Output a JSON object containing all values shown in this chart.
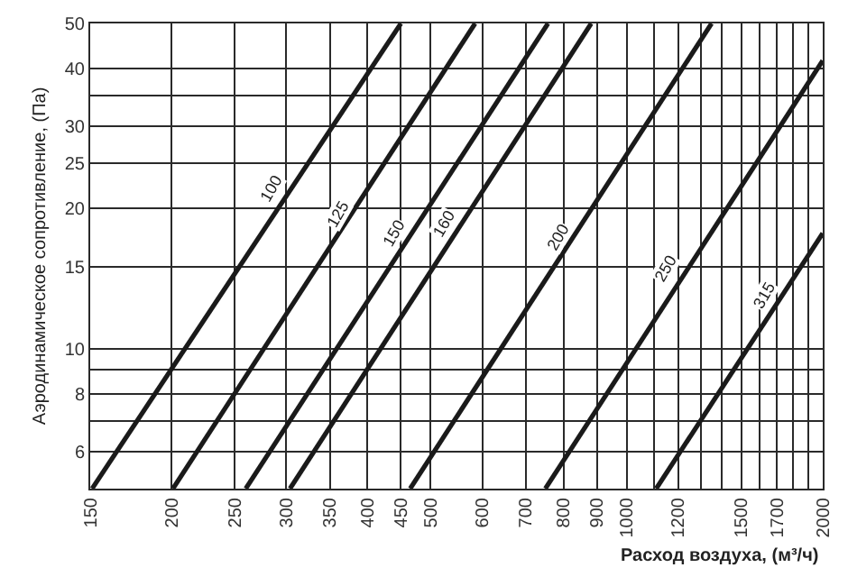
{
  "chart_data": {
    "type": "line",
    "xlabel": "Расход воздуха, (м³/ч)",
    "ylabel": "Аэродинамическое сопротивление, (Па)",
    "log": "xy",
    "grid": true,
    "marker": "none",
    "line_style": "solid",
    "xlim": [
      150,
      2000
    ],
    "ylim": [
      5,
      50
    ],
    "xticks": [
      150,
      200,
      250,
      300,
      350,
      400,
      450,
      500,
      600,
      700,
      800,
      900,
      1000,
      {
        "value": 1100,
        "label": null
      },
      1200,
      {
        "value": 1300,
        "label": null
      },
      {
        "value": 1400,
        "label": null
      },
      1500,
      {
        "value": 1600,
        "label": null
      },
      1700,
      {
        "value": 1800,
        "label": null
      },
      {
        "value": 1900,
        "label": null
      },
      2000
    ],
    "yticks": [
      6,
      {
        "value": 7,
        "label": null
      },
      8,
      {
        "value": 9,
        "label": null
      },
      10,
      15,
      20,
      25,
      30,
      {
        "value": 35,
        "label": null
      },
      40,
      50
    ],
    "series": [
      {
        "color": "#1a1a1a",
        "x": [
          151,
          450
        ],
        "values": [
          5,
          50
        ]
      },
      {
        "color": "#1a1a1a",
        "x": [
          201,
          585
        ],
        "values": [
          5,
          50
        ]
      },
      {
        "color": "#1a1a1a",
        "x": [
          260,
          757
        ],
        "values": [
          5,
          50
        ]
      },
      {
        "color": "#1a1a1a",
        "x": [
          304,
          882
        ],
        "values": [
          5,
          50
        ]
      },
      {
        "color": "#1a1a1a",
        "x": [
          465,
          1350
        ],
        "values": [
          5,
          50
        ]
      },
      {
        "color": "#1a1a1a",
        "x": [
          750,
          2000
        ],
        "values": [
          5,
          41.6
        ]
      },
      {
        "color": "#1a1a1a",
        "x": [
          1110,
          2000
        ],
        "values": [
          5,
          17.7
        ]
      }
    ],
    "annotations": [
      {
        "text": "100",
        "x": 284,
        "y": 22
      },
      {
        "text": "125",
        "x": 360,
        "y": 19.4
      },
      {
        "text": "150",
        "x": 440,
        "y": 17.7
      },
      {
        "text": "160",
        "x": 525,
        "y": 18.5
      },
      {
        "text": "200",
        "x": 783,
        "y": 17.3
      },
      {
        "text": "250",
        "x": 1145,
        "y": 14.9
      },
      {
        "text": "315",
        "x": 1624,
        "y": 13.0
      }
    ]
  }
}
